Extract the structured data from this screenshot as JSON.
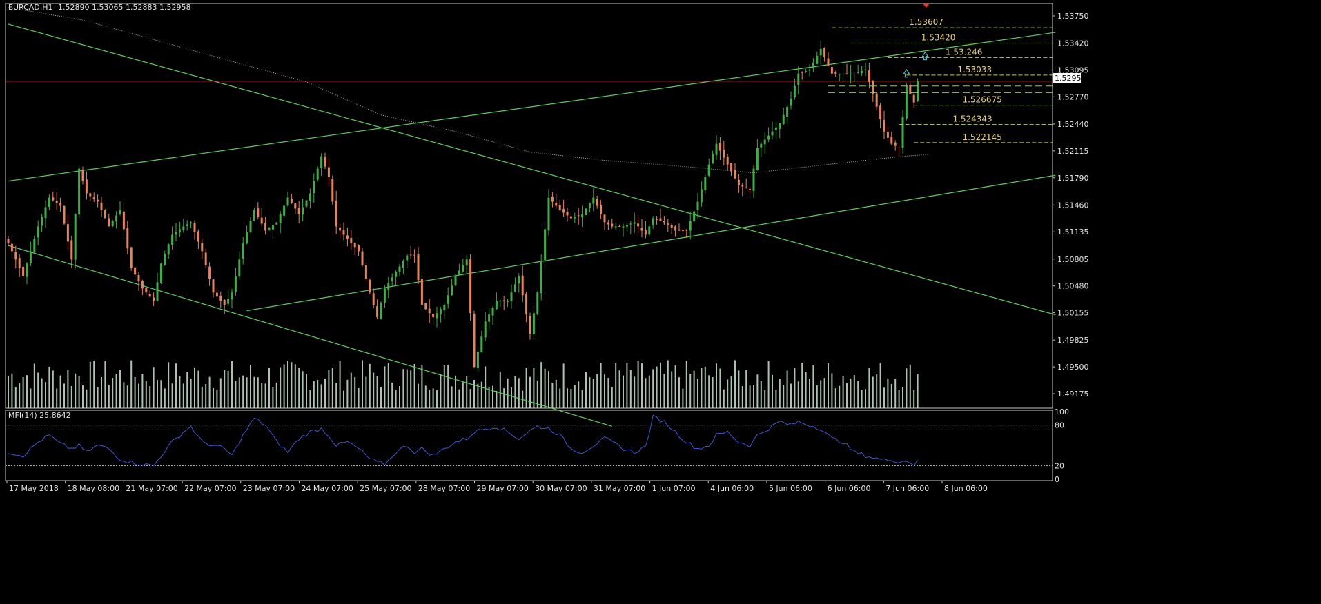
{
  "header": {
    "symbol_info": "EURCAD,H1",
    "ohlc": "1.52890 1.53065 1.52883 1.52958"
  },
  "chart_data": [
    {
      "type": "candlestick",
      "symbol": "EURCAD",
      "timeframe": "H1",
      "ylim": [
        1.49,
        1.539
      ],
      "y_ticks": [
        "1.53750",
        "1.53420",
        "1.53095",
        "1.52770",
        "1.52440",
        "1.52115",
        "1.51790",
        "1.51460",
        "1.51135",
        "1.50805",
        "1.50480",
        "1.50155",
        "1.49825",
        "1.49500",
        "1.49175"
      ],
      "current_price": "1.52958",
      "x_ticks": [
        "17 May 2018",
        "18 May 08:00",
        "21 May 07:00",
        "22 May 07:00",
        "23 May 07:00",
        "24 May 07:00",
        "25 May 07:00",
        "28 May 07:00",
        "29 May 07:00",
        "30 May 07:00",
        "31 May 07:00",
        "1 Jun 07:00",
        "4 Jun 06:00",
        "5 Jun 06:00",
        "6 Jun 06:00",
        "7 Jun 06:00",
        "8 Jun 06:00"
      ],
      "bull_color": "#3cb043",
      "bear_color": "#e9835a",
      "close_path": [
        [
          0,
          1.51
        ],
        [
          4,
          1.506
        ],
        [
          8,
          1.512
        ],
        [
          11,
          1.5155
        ],
        [
          14,
          1.5145
        ],
        [
          17,
          1.508
        ],
        [
          19,
          1.519
        ],
        [
          21,
          1.516
        ],
        [
          24,
          1.515
        ],
        [
          27,
          1.512
        ],
        [
          30,
          1.514
        ],
        [
          33,
          1.507
        ],
        [
          36,
          1.5045
        ],
        [
          39,
          1.503
        ],
        [
          41,
          1.5075
        ],
        [
          44,
          1.511
        ],
        [
          47,
          1.512
        ],
        [
          49,
          1.5125
        ],
        [
          52,
          1.509
        ],
        [
          55,
          1.504
        ],
        [
          58,
          1.5025
        ],
        [
          60,
          1.504
        ],
        [
          63,
          1.51
        ],
        [
          66,
          1.514
        ],
        [
          69,
          1.5115
        ],
        [
          72,
          1.5125
        ],
        [
          75,
          1.5155
        ],
        [
          78,
          1.5135
        ],
        [
          81,
          1.516
        ],
        [
          84,
          1.5205
        ],
        [
          86,
          1.518
        ],
        [
          88,
          1.512
        ],
        [
          91,
          1.5105
        ],
        [
          94,
          1.509
        ],
        [
          97,
          1.504
        ],
        [
          99,
          1.501
        ],
        [
          101,
          1.5045
        ],
        [
          104,
          1.5065
        ],
        [
          107,
          1.5085
        ],
        [
          109,
          1.5085
        ],
        [
          111,
          1.5025
        ],
        [
          114,
          1.501
        ],
        [
          117,
          1.5025
        ],
        [
          120,
          1.506
        ],
        [
          123,
          1.508
        ],
        [
          125,
          1.495
        ],
        [
          128,
          1.5005
        ],
        [
          131,
          1.503
        ],
        [
          134,
          1.503
        ],
        [
          137,
          1.506
        ],
        [
          140,
          1.499
        ],
        [
          142,
          1.504
        ],
        [
          145,
          1.5155
        ],
        [
          148,
          1.514
        ],
        [
          151,
          1.513
        ],
        [
          154,
          1.5135
        ],
        [
          157,
          1.5155
        ],
        [
          160,
          1.5125
        ],
        [
          162,
          1.512
        ],
        [
          165,
          1.512
        ],
        [
          168,
          1.5125
        ],
        [
          171,
          1.511
        ],
        [
          173,
          1.513
        ],
        [
          176,
          1.5125
        ],
        [
          179,
          1.5115
        ],
        [
          182,
          1.5115
        ],
        [
          185,
          1.515
        ],
        [
          188,
          1.5195
        ],
        [
          190,
          1.522
        ],
        [
          193,
          1.5195
        ],
        [
          196,
          1.517
        ],
        [
          199,
          1.5165
        ],
        [
          201,
          1.5215
        ],
        [
          204,
          1.523
        ],
        [
          207,
          1.5245
        ],
        [
          210,
          1.5275
        ],
        [
          212,
          1.5305
        ],
        [
          215,
          1.531
        ],
        [
          218,
          1.5335
        ],
        [
          221,
          1.5305
        ],
        [
          224,
          1.5305
        ],
        [
          227,
          1.5305
        ],
        [
          230,
          1.531
        ],
        [
          232,
          1.528
        ],
        [
          235,
          1.5235
        ],
        [
          237,
          1.522
        ],
        [
          239,
          1.5215
        ],
        [
          241,
          1.529
        ],
        [
          243,
          1.527
        ],
        [
          244,
          1.5296
        ]
      ],
      "volume_note": "tick volume histogram"
    },
    {
      "type": "line",
      "indicator": "MFI(14)",
      "value": "25.8642",
      "ylim": [
        0,
        100
      ],
      "y_ticks": [
        "100",
        "80",
        "20",
        "0"
      ],
      "levels": [
        80,
        20
      ],
      "color": "#3d55d8",
      "path": [
        [
          0,
          40
        ],
        [
          4,
          35
        ],
        [
          8,
          55
        ],
        [
          11,
          65
        ],
        [
          14,
          52
        ],
        [
          17,
          45
        ],
        [
          19,
          50
        ],
        [
          21,
          40
        ],
        [
          24,
          50
        ],
        [
          27,
          45
        ],
        [
          30,
          30
        ],
        [
          33,
          25
        ],
        [
          36,
          22
        ],
        [
          39,
          20
        ],
        [
          41,
          35
        ],
        [
          44,
          55
        ],
        [
          47,
          70
        ],
        [
          49,
          78
        ],
        [
          52,
          55
        ],
        [
          55,
          50
        ],
        [
          58,
          45
        ],
        [
          60,
          35
        ],
        [
          63,
          65
        ],
        [
          66,
          90
        ],
        [
          69,
          80
        ],
        [
          72,
          55
        ],
        [
          75,
          40
        ],
        [
          78,
          60
        ],
        [
          81,
          70
        ],
        [
          84,
          75
        ],
        [
          86,
          65
        ],
        [
          88,
          50
        ],
        [
          91,
          55
        ],
        [
          94,
          45
        ],
        [
          97,
          30
        ],
        [
          99,
          25
        ],
        [
          101,
          22
        ],
        [
          104,
          40
        ],
        [
          107,
          50
        ],
        [
          109,
          40
        ],
        [
          111,
          45
        ],
        [
          114,
          35
        ],
        [
          117,
          45
        ],
        [
          120,
          55
        ],
        [
          123,
          60
        ],
        [
          125,
          70
        ],
        [
          128,
          75
        ],
        [
          131,
          78
        ],
        [
          134,
          70
        ],
        [
          137,
          60
        ],
        [
          140,
          72
        ],
        [
          142,
          78
        ],
        [
          145,
          75
        ],
        [
          148,
          65
        ],
        [
          151,
          45
        ],
        [
          154,
          40
        ],
        [
          157,
          50
        ],
        [
          160,
          60
        ],
        [
          162,
          55
        ],
        [
          165,
          45
        ],
        [
          168,
          40
        ],
        [
          171,
          48
        ],
        [
          173,
          92
        ],
        [
          176,
          85
        ],
        [
          179,
          70
        ],
        [
          182,
          55
        ],
        [
          185,
          45
        ],
        [
          188,
          50
        ],
        [
          190,
          65
        ],
        [
          193,
          70
        ],
        [
          196,
          55
        ],
        [
          199,
          50
        ],
        [
          201,
          65
        ],
        [
          204,
          75
        ],
        [
          207,
          85
        ],
        [
          210,
          80
        ],
        [
          212,
          85
        ],
        [
          215,
          80
        ],
        [
          218,
          75
        ],
        [
          221,
          60
        ],
        [
          224,
          55
        ],
        [
          227,
          40
        ],
        [
          230,
          35
        ],
        [
          232,
          32
        ],
        [
          235,
          28
        ],
        [
          237,
          30
        ],
        [
          239,
          25
        ],
        [
          241,
          28
        ],
        [
          243,
          22
        ],
        [
          244,
          25.86
        ]
      ]
    }
  ],
  "annotations": {
    "level_lines": [
      {
        "label": "1.53607",
        "value": 1.53607,
        "from_bar": 221
      },
      {
        "label": "1.53420",
        "value": 1.5342,
        "from_bar": 226
      },
      {
        "label": "1.53.246",
        "value": 1.53246,
        "from_bar": 236
      },
      {
        "label": "1.53033",
        "value": 1.53033,
        "from_bar": 241
      },
      {
        "label": "1.526675",
        "value": 1.526675,
        "from_bar": 243
      },
      {
        "label": "1.524343",
        "value": 1.524343,
        "from_bar": 239
      },
      {
        "label": "1.522145",
        "value": 1.522145,
        "from_bar": 243
      }
    ],
    "dashed_levels": [
      1.529,
      1.5282
    ],
    "red_line": 1.52958,
    "trendlines": [
      {
        "from": [
          0,
          1.5175
        ],
        "to": [
          281,
          1.5355
        ]
      },
      {
        "from": [
          0,
          1.5365
        ],
        "to": [
          281,
          1.5013
        ]
      },
      {
        "from": [
          0,
          1.5097
        ],
        "to": [
          162,
          1.4878
        ]
      },
      {
        "from": [
          64,
          1.5018
        ],
        "to": [
          281,
          1.5182
        ]
      }
    ],
    "arrows": [
      {
        "bar": 241,
        "value": 1.5305
      },
      {
        "bar": 246,
        "value": 1.5326
      }
    ],
    "ma_path": [
      [
        0,
        1.5385
      ],
      [
        20,
        1.537
      ],
      [
        40,
        1.5345
      ],
      [
        60,
        1.532
      ],
      [
        80,
        1.5295
      ],
      [
        100,
        1.5255
      ],
      [
        120,
        1.5235
      ],
      [
        140,
        1.521
      ],
      [
        160,
        1.52
      ],
      [
        180,
        1.5193
      ],
      [
        200,
        1.5185
      ],
      [
        220,
        1.5195
      ],
      [
        240,
        1.5205
      ],
      [
        247,
        1.5207
      ]
    ],
    "marker_triangle_color": "#ff2a2a"
  },
  "colors": {
    "background": "#000000",
    "axis": "#c8c8c8",
    "level_line": "#b8d45a",
    "level_text": "#e8d36a",
    "trendline": "#5ad25a",
    "red_line": "#d01818",
    "ma": "#b0b0b0",
    "volume": "#c9e6cf"
  },
  "sub_chart_label": "MFI(14) 25.8642"
}
